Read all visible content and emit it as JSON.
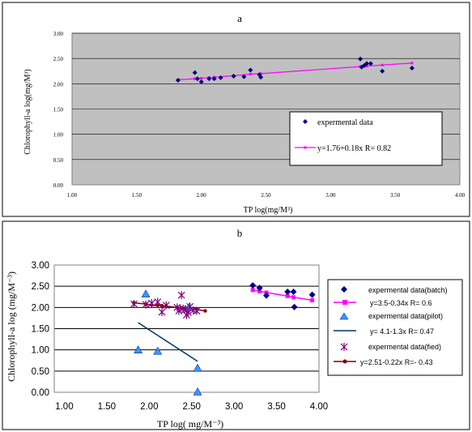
{
  "chart_data": [
    {
      "panel_label": "a",
      "type": "scatter",
      "xlabel": "TP log(mg/M³)",
      "ylabel": "Chlorophyll-a  log(mg/M³)",
      "xlim": [
        1.0,
        4.0
      ],
      "ylim": [
        0.0,
        3.0
      ],
      "xticks": [
        "1.00",
        "1.50",
        "2.00",
        "2.50",
        "3.00",
        "3.50",
        "4.00"
      ],
      "yticks": [
        "0.00",
        "0.50",
        "1.00",
        "1.50",
        "2.00",
        "2.50",
        "3.00"
      ],
      "grid": true,
      "legend_position": "right",
      "colors": {
        "plot_bg": "#c0c0c0",
        "points": "#000080",
        "fit": "#ff00ff"
      },
      "series": [
        {
          "name": "expermental data",
          "kind": "points",
          "x": [
            1.82,
            1.95,
            1.97,
            2.0,
            2.06,
            2.1,
            2.15,
            2.25,
            2.33,
            2.38,
            2.45,
            2.46,
            3.23,
            3.24,
            3.26,
            3.28,
            3.31,
            3.4,
            3.63
          ],
          "y": [
            2.07,
            2.22,
            2.1,
            2.04,
            2.1,
            2.1,
            2.12,
            2.15,
            2.14,
            2.27,
            2.18,
            2.13,
            2.49,
            2.33,
            2.36,
            2.4,
            2.4,
            2.25,
            2.31
          ]
        },
        {
          "name": "y=1.76+0.18x  R= 0.82",
          "kind": "fit-line",
          "x": [
            1.82,
            1.95,
            2.0,
            2.06,
            2.1,
            2.25,
            2.38,
            2.46,
            3.23,
            3.28,
            3.4,
            3.63
          ],
          "y": [
            2.08,
            2.1,
            2.11,
            2.12,
            2.13,
            2.16,
            2.19,
            2.2,
            2.34,
            2.35,
            2.37,
            2.41
          ]
        }
      ]
    },
    {
      "panel_label": "b",
      "type": "scatter",
      "xlabel": "TP log( mg/M⁻³)",
      "ylabel": "Chlorophyll-a log  (mg/M⁻³)",
      "xlim": [
        0.5,
        4.0
      ],
      "ylim": [
        0.0,
        3.0
      ],
      "xticks": [
        "1.00",
        "1.50",
        "2.00",
        "2.50",
        "3.00",
        "3.50",
        "4.00"
      ],
      "yticks": [
        "0.00",
        "0.50",
        "1.00",
        "1.50",
        "2.00",
        "2.50",
        "3.00"
      ],
      "grid": true,
      "legend_position": "right",
      "colors": {
        "batch": "#000080",
        "batch_fit": "#ff00ff",
        "pilot": "#3399ff",
        "pilot_fit": "#003366",
        "field": "#800080",
        "field_fit": "#800000"
      },
      "series": [
        {
          "name": "expermental data(batch)",
          "kind": "points",
          "marker": "diamond",
          "x": [
            3.22,
            3.3,
            3.38,
            3.63,
            3.7,
            3.71,
            3.92
          ],
          "y": [
            2.52,
            2.46,
            2.28,
            2.37,
            2.37,
            2.01,
            2.3
          ]
        },
        {
          "name": "y=3.5-0.34x  R= 0.6",
          "kind": "fit-line",
          "marker": "square",
          "x": [
            3.22,
            3.3,
            3.38,
            3.63,
            3.7,
            3.92
          ],
          "y": [
            2.41,
            2.38,
            2.35,
            2.27,
            2.24,
            2.17
          ]
        },
        {
          "name": "expermental data(pilot)",
          "kind": "points",
          "marker": "triangle",
          "x": [
            1.87,
            1.96,
            2.1,
            2.47,
            2.57,
            2.57
          ],
          "y": [
            1.0,
            2.32,
            0.97,
            2.0,
            0.57,
            0.01
          ]
        },
        {
          "name": "y= 4.1-1.3x  R= 0.47",
          "kind": "fit-line",
          "x": [
            1.87,
            2.57
          ],
          "y": [
            1.64,
            0.73
          ]
        },
        {
          "name": "expermental data(fied)",
          "kind": "points",
          "marker": "star",
          "x": [
            1.82,
            1.96,
            2.03,
            2.1,
            2.15,
            2.2,
            2.33,
            2.35,
            2.38,
            2.4,
            2.42,
            2.44,
            2.46,
            2.48,
            2.52,
            2.56
          ],
          "y": [
            2.08,
            2.07,
            2.1,
            2.13,
            1.89,
            2.05,
            2.0,
            1.92,
            2.29,
            1.97,
            1.95,
            1.82,
            1.88,
            2.02,
            1.93,
            1.92
          ]
        },
        {
          "name": "y=2.51-0.22x  R=- 0.43",
          "kind": "fit-line",
          "marker": "dot",
          "x": [
            1.82,
            1.96,
            2.03,
            2.1,
            2.15,
            2.2,
            2.33,
            2.38,
            2.44,
            2.48,
            2.56,
            2.66
          ],
          "y": [
            2.11,
            2.08,
            2.06,
            2.05,
            2.04,
            2.03,
            2.0,
            1.99,
            1.97,
            1.96,
            1.95,
            1.92
          ]
        }
      ]
    }
  ]
}
